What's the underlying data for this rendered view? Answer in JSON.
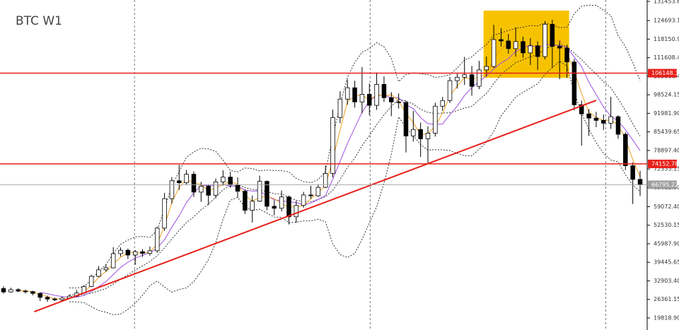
{
  "chart_data": {
    "type": "candlestick",
    "title": "BTC W1",
    "open": [
      30200,
      29000,
      29800,
      29300,
      29100,
      28500,
      27100,
      26500,
      26200,
      26800,
      27500,
      28600,
      30900,
      34500,
      36800,
      37500,
      42500,
      43700,
      42000,
      43200,
      42600,
      43500,
      51500,
      61900,
      68200,
      67500,
      70500,
      64200,
      66300,
      63100,
      67800,
      69500,
      66800,
      64500,
      57800,
      61000,
      68000,
      59200,
      58500,
      62500,
      55500,
      59500,
      63200,
      62900,
      65900,
      70800,
      90500,
      97000,
      101000,
      96000,
      98700,
      94800,
      102200,
      97500,
      96000,
      95800,
      84000,
      86300,
      83000,
      85000,
      94500,
      96500,
      103500,
      104700,
      105600,
      101500,
      107300,
      108500,
      118000,
      117500,
      114800,
      117300,
      113300,
      115800,
      112000,
      123400,
      115600,
      115000,
      110100,
      95000,
      91800,
      90300,
      89500,
      88500,
      90800,
      84600,
      73500,
      68700
    ],
    "high": [
      31000,
      30500,
      30300,
      29800,
      29400,
      28800,
      27700,
      27000,
      27400,
      28000,
      29700,
      31400,
      35100,
      38100,
      38800,
      44800,
      44700,
      44300,
      43800,
      44100,
      45000,
      52000,
      63900,
      69500,
      73800,
      72000,
      71500,
      67800,
      66800,
      69000,
      71900,
      71400,
      69400,
      65200,
      63000,
      70000,
      68300,
      61300,
      64800,
      63000,
      61100,
      64300,
      66400,
      67000,
      73600,
      93300,
      99800,
      104000,
      103500,
      108300,
      102500,
      106400,
      105000,
      99500,
      99000,
      96500,
      92800,
      88700,
      87400,
      95700,
      97800,
      104800,
      106000,
      111900,
      108700,
      110500,
      112000,
      123200,
      122000,
      120000,
      122300,
      119000,
      118500,
      117400,
      124500,
      125000,
      117600,
      116200,
      111200,
      96500,
      93500,
      92500,
      91600,
      97800,
      91300,
      85300,
      74700,
      71700
    ],
    "low": [
      28400,
      28700,
      28900,
      28400,
      27800,
      25800,
      25500,
      25800,
      25900,
      26500,
      27200,
      28400,
      30700,
      34200,
      36100,
      37300,
      41500,
      40600,
      38600,
      41400,
      41800,
      42800,
      50500,
      60100,
      65000,
      66700,
      62500,
      60800,
      59600,
      62000,
      66500,
      65700,
      62300,
      56500,
      53500,
      60700,
      57800,
      56000,
      57400,
      52800,
      53400,
      58700,
      61800,
      62500,
      65600,
      69400,
      88500,
      95000,
      94000,
      92000,
      91300,
      93200,
      96000,
      91000,
      93700,
      78200,
      82000,
      76600,
      74500,
      83800,
      92900,
      95600,
      100700,
      102000,
      98200,
      100500,
      105000,
      108000,
      115500,
      113000,
      112000,
      111600,
      109000,
      107300,
      111000,
      108000,
      104000,
      104500,
      93000,
      80600,
      84000,
      87100,
      86100,
      86500,
      83000,
      72000,
      60000,
      62800
    ],
    "close": [
      29000,
      29800,
      29300,
      29100,
      28500,
      27100,
      26500,
      26200,
      26800,
      27500,
      28600,
      30900,
      34500,
      36800,
      37500,
      42500,
      43700,
      42000,
      43200,
      42600,
      43500,
      51500,
      61900,
      68200,
      67500,
      70500,
      64200,
      66300,
      63100,
      67800,
      69500,
      66800,
      64500,
      57800,
      61000,
      68000,
      59200,
      58500,
      62500,
      55500,
      59500,
      63200,
      62900,
      65900,
      70800,
      90500,
      97000,
      101000,
      96000,
      98700,
      94800,
      102200,
      97500,
      96000,
      95800,
      84000,
      86300,
      83000,
      85000,
      94500,
      96500,
      103500,
      104700,
      105600,
      101500,
      107300,
      108500,
      118000,
      117500,
      114800,
      117300,
      113300,
      115800,
      112000,
      123400,
      115600,
      115000,
      110100,
      95000,
      91800,
      90300,
      89500,
      88500,
      90800,
      84600,
      73500,
      68700,
      66795.22
    ],
    "up_color": "#ffffff",
    "down_color": "#000000",
    "ylim": [
      15575,
      131950
    ],
    "yticks": [
      131453.65,
      124693.15,
      {
        "value": 118150.9,
        "label": "118150.90"
      },
      {
        "value": 111608.4,
        "label": "111608.40"
      },
      {
        "value": 105066.4,
        "label": "105066.40"
      },
      98524.15,
      {
        "value": 91981.9,
        "label": "91981.90"
      },
      85439.65,
      {
        "value": 78897.4,
        "label": "78897.40"
      },
      72355.15,
      {
        "value": 65812.9,
        "label": "65812.90"
      },
      {
        "value": 59072.4,
        "label": "59072.40"
      },
      52530.15,
      {
        "value": 45987.9,
        "label": "45987.90"
      },
      39445.65,
      {
        "value": 32903.4,
        "label": "32903.40"
      },
      26361.15,
      {
        "value": 19818.9,
        "label": "19818.90"
      }
    ],
    "hlines": [
      {
        "value": 106148.38,
        "color": "#e8201a"
      },
      {
        "value": 74152.78,
        "color": "#e8201a"
      }
    ],
    "last_price": {
      "value": 66795.22,
      "color": "#a0a0a0"
    },
    "trendline": {
      "from": [
        4.2,
        22050
      ],
      "to": [
        81,
        96560
      ],
      "color": "#e8201a"
    },
    "highlight": {
      "x": [
        65.6,
        77.3
      ],
      "y": [
        104540,
        128210
      ],
      "color": "#f7c300"
    },
    "vlines": [
      17.9,
      50.1,
      82.3
    ]
  }
}
